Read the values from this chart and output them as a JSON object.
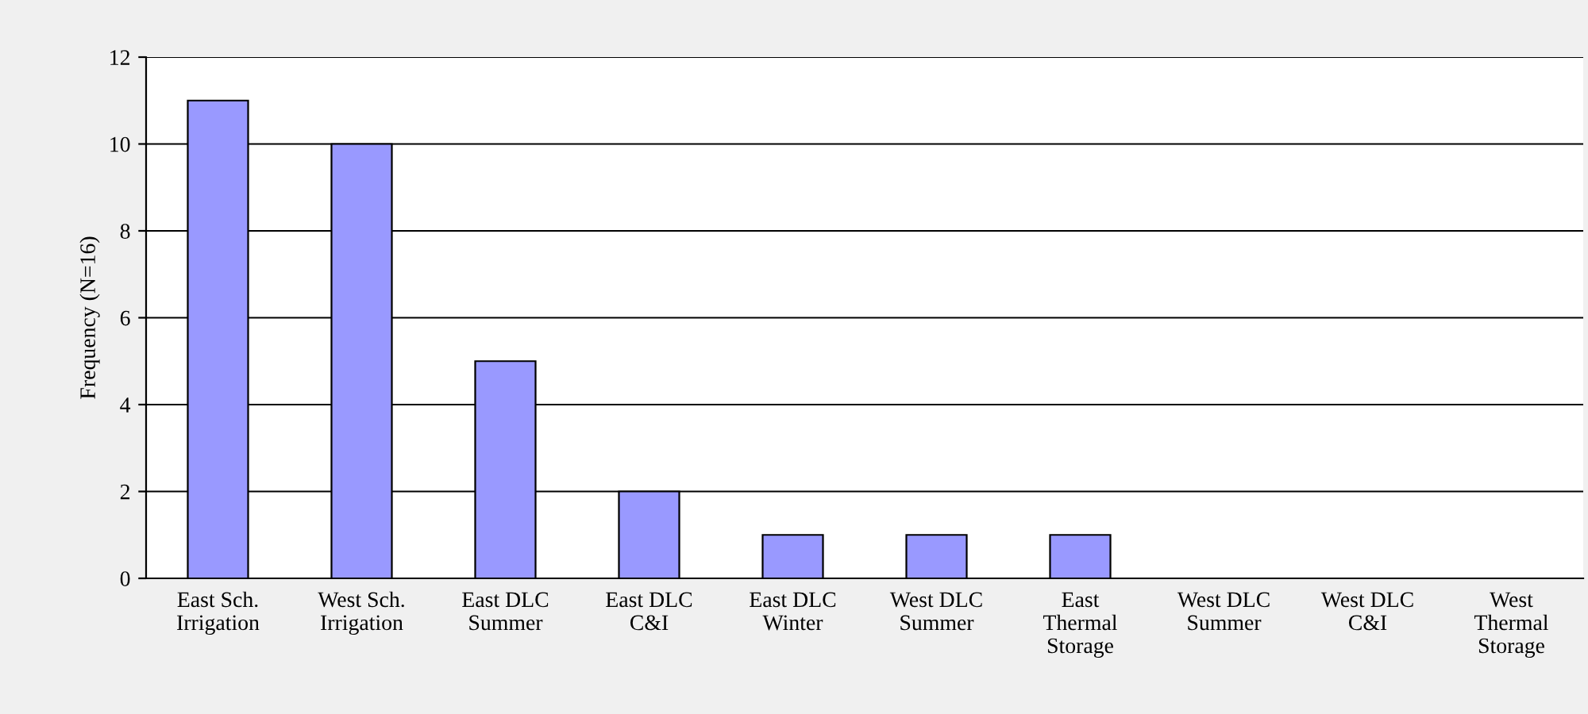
{
  "chart_data": {
    "type": "bar",
    "ylabel": "Frequency (N=16)",
    "categories": [
      "East Sch.\nIrrigation",
      "West Sch.\nIrrigation",
      "East DLC\nSummer",
      "East DLC\nC&I",
      "East DLC\nWinter",
      "West DLC\nSummer",
      "East\nThermal\nStorage",
      "West DLC\nSummer",
      "West DLC\nC&I",
      "West\nThermal\nStorage"
    ],
    "values": [
      11,
      10,
      5,
      2,
      1,
      1,
      1,
      0,
      0,
      0
    ],
    "color": "#9999ff",
    "ylim": [
      0,
      12
    ],
    "yticks": [
      0,
      2,
      4,
      6,
      8,
      10,
      12
    ],
    "grid": "y",
    "legend": false
  }
}
